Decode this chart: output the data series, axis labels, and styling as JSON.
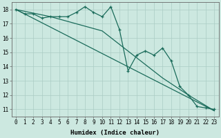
{
  "xlabel": "Humidex (Indice chaleur)",
  "xlim": [
    -0.5,
    23.5
  ],
  "ylim": [
    10.5,
    18.5
  ],
  "background_color": "#cce8e0",
  "grid_color": "#aaccc4",
  "line_color": "#1a6b5a",
  "line1_x": [
    0,
    1,
    2,
    3,
    4,
    5,
    6,
    7,
    8,
    9,
    10,
    11,
    12,
    13,
    14,
    15,
    16,
    17,
    18,
    19,
    20,
    21,
    22,
    23
  ],
  "line1_y": [
    18.0,
    17.7,
    17.7,
    17.4,
    17.5,
    17.5,
    17.5,
    17.8,
    18.2,
    17.8,
    17.5,
    18.2,
    16.6,
    13.7,
    14.8,
    15.1,
    14.8,
    15.3,
    14.4,
    12.6,
    12.0,
    11.2,
    11.1,
    11.0
  ],
  "line2_x": [
    0,
    23
  ],
  "line2_y": [
    18.0,
    10.9
  ],
  "line3_x": [
    0,
    4,
    10,
    17,
    20,
    23
  ],
  "line3_y": [
    18.0,
    17.5,
    16.5,
    13.2,
    12.0,
    10.9
  ],
  "ytick_vals": [
    11,
    12,
    13,
    14,
    15,
    16,
    17,
    18
  ],
  "tick_fontsize": 5.5,
  "label_fontsize": 6.5
}
